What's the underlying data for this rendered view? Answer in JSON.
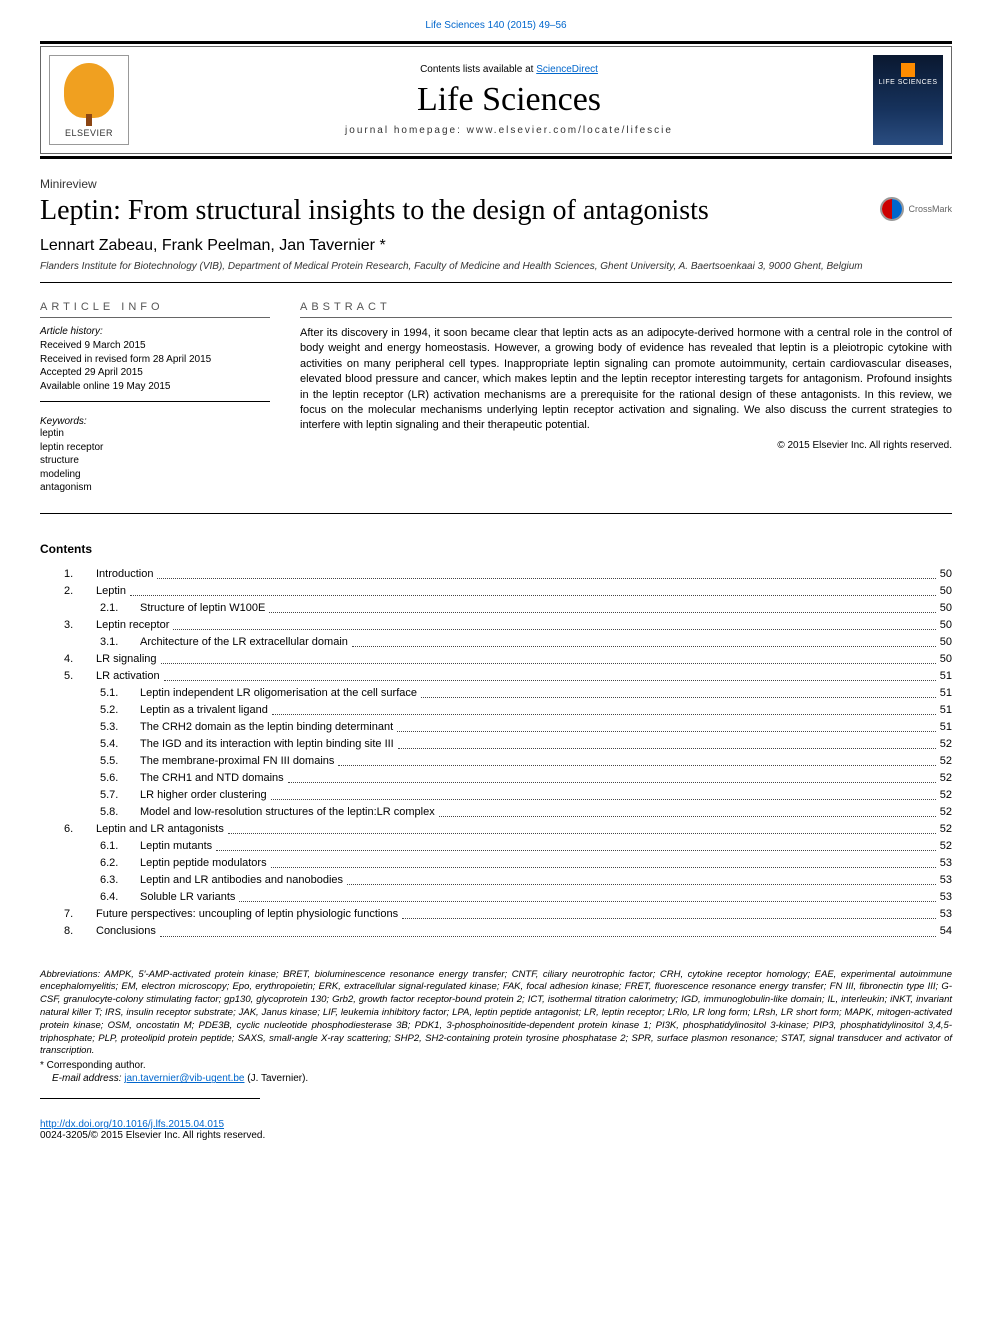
{
  "citation": "Life Sciences 140 (2015) 49–56",
  "header": {
    "available_prefix": "Contents lists available at ",
    "available_link": "ScienceDirect",
    "journal": "Life Sciences",
    "homepage_prefix": "journal homepage: ",
    "homepage_url": "www.elsevier.com/locate/lifescie",
    "publisher": "ELSEVIER",
    "cover_label": "LIFE SCIENCES"
  },
  "article": {
    "type": "Minireview",
    "title": "Leptin: From structural insights to the design of antagonists",
    "crossmark": "CrossMark",
    "authors": "Lennart Zabeau, Frank Peelman, Jan Tavernier ",
    "corr_marker": "*",
    "affiliation": "Flanders Institute for Biotechnology (VIB), Department of Medical Protein Research, Faculty of Medicine and Health Sciences, Ghent University, A. Baertsoenkaai 3, 9000 Ghent, Belgium"
  },
  "info": {
    "heading": "ARTICLE INFO",
    "history_label": "Article history:",
    "received": "Received 9 March 2015",
    "revised": "Received in revised form 28 April 2015",
    "accepted": "Accepted 29 April 2015",
    "online": "Available online 19 May 2015",
    "keywords_label": "Keywords:",
    "keywords": [
      "leptin",
      "leptin receptor",
      "structure",
      "modeling",
      "antagonism"
    ]
  },
  "abstract": {
    "heading": "ABSTRACT",
    "text": "After its discovery in 1994, it soon became clear that leptin acts as an adipocyte-derived hormone with a central role in the control of body weight and energy homeostasis. However, a growing body of evidence has revealed that leptin is a pleiotropic cytokine with activities on many peripheral cell types. Inappropriate leptin signaling can promote autoimmunity, certain cardiovascular diseases, elevated blood pressure and cancer, which makes leptin and the leptin receptor interesting targets for antagonism. Profound insights in the leptin receptor (LR) activation mechanisms are a prerequisite for the rational design of these antagonists. In this review, we focus on the molecular mechanisms underlying leptin receptor activation and signaling. We also discuss the current strategies to interfere with leptin signaling and their therapeutic potential.",
    "copyright": "© 2015 Elsevier Inc. All rights reserved."
  },
  "contents_heading": "Contents",
  "toc": [
    {
      "n": "1.",
      "t": "Introduction",
      "p": "50"
    },
    {
      "n": "2.",
      "t": "Leptin",
      "p": "50"
    },
    {
      "n": "2.1.",
      "t": "Structure of leptin W100E",
      "p": "50",
      "sub": true
    },
    {
      "n": "3.",
      "t": "Leptin receptor",
      "p": "50"
    },
    {
      "n": "3.1.",
      "t": "Architecture of the LR extracellular domain",
      "p": "50",
      "sub": true
    },
    {
      "n": "4.",
      "t": "LR signaling",
      "p": "50"
    },
    {
      "n": "5.",
      "t": "LR activation",
      "p": "51"
    },
    {
      "n": "5.1.",
      "t": "Leptin independent LR oligomerisation at the cell surface",
      "p": "51",
      "sub": true
    },
    {
      "n": "5.2.",
      "t": "Leptin as a trivalent ligand",
      "p": "51",
      "sub": true
    },
    {
      "n": "5.3.",
      "t": "The CRH2 domain as the leptin binding determinant",
      "p": "51",
      "sub": true
    },
    {
      "n": "5.4.",
      "t": "The IGD and its interaction with leptin binding site III",
      "p": "52",
      "sub": true
    },
    {
      "n": "5.5.",
      "t": "The membrane-proximal FN III domains",
      "p": "52",
      "sub": true
    },
    {
      "n": "5.6.",
      "t": "The CRH1 and NTD domains",
      "p": "52",
      "sub": true
    },
    {
      "n": "5.7.",
      "t": "LR higher order clustering",
      "p": "52",
      "sub": true
    },
    {
      "n": "5.8.",
      "t": "Model and low-resolution structures of the leptin:LR complex",
      "p": "52",
      "sub": true
    },
    {
      "n": "6.",
      "t": "Leptin and LR antagonists",
      "p": "52"
    },
    {
      "n": "6.1.",
      "t": "Leptin mutants",
      "p": "52",
      "sub": true
    },
    {
      "n": "6.2.",
      "t": "Leptin peptide modulators",
      "p": "53",
      "sub": true
    },
    {
      "n": "6.3.",
      "t": "Leptin and LR antibodies and nanobodies",
      "p": "53",
      "sub": true
    },
    {
      "n": "6.4.",
      "t": "Soluble LR variants",
      "p": "53",
      "sub": true
    },
    {
      "n": "7.",
      "t": "Future perspectives: uncoupling of leptin physiologic functions",
      "p": "53"
    },
    {
      "n": "8.",
      "t": "Conclusions",
      "p": "54"
    }
  ],
  "abbrev": {
    "lead": "Abbreviations: ",
    "text": "AMPK, 5′-AMP-activated protein kinase; BRET, bioluminescence resonance energy transfer; CNTF, ciliary neurotrophic factor; CRH, cytokine receptor homology; EAE, experimental autoimmune encephalomyelitis; EM, electron microscopy; Epo, erythropoietin; ERK, extracellular signal-regulated kinase; FAK, focal adhesion kinase; FRET, fluorescence resonance energy transfer; FN III, fibronectin type III; G-CSF, granulocyte-colony stimulating factor; gp130, glycoprotein 130; Grb2, growth factor receptor-bound protein 2; ICT, isothermal titration calorimetry; IGD, immunoglobulin-like domain; IL, interleukin; iNKT, invariant natural killer T; IRS, insulin receptor substrate; JAK, Janus kinase; LIF, leukemia inhibitory factor; LPA, leptin peptide antagonist; LR, leptin receptor; LRlo, LR long form; LRsh, LR short form; MAPK, mitogen-activated protein kinase; OSM, oncostatin M; PDE3B, cyclic nucleotide phosphodiesterase 3B; PDK1, 3-phosphoinositide-dependent protein kinase 1; PI3K, phosphatidylinositol 3-kinase; PIP3, phosphatidylinositol 3,4,5-triphosphate; PLP, proteolipid protein peptide; SAXS, small-angle X-ray scattering; SHP2, SH2-containing protein tyrosine phosphatase 2; SPR, surface plasmon resonance; STAT, signal transducer and activator of transcription."
  },
  "corresponding": {
    "marker": "* ",
    "text": "Corresponding author.",
    "email_label": "E-mail address: ",
    "email": "jan.tavernier@vib-ugent.be",
    "email_after": " (J. Tavernier)."
  },
  "footer": {
    "doi": "http://dx.doi.org/10.1016/j.lfs.2015.04.015",
    "issn_line": "0024-3205/© 2015 Elsevier Inc. All rights reserved."
  },
  "colors": {
    "link": "#0066cc",
    "rule": "#000000",
    "text_muted": "#555555"
  },
  "typography": {
    "body_fontsize_pt": 8,
    "title_fontsize_pt": 21,
    "journal_fontsize_pt": 26,
    "authors_fontsize_pt": 12
  }
}
